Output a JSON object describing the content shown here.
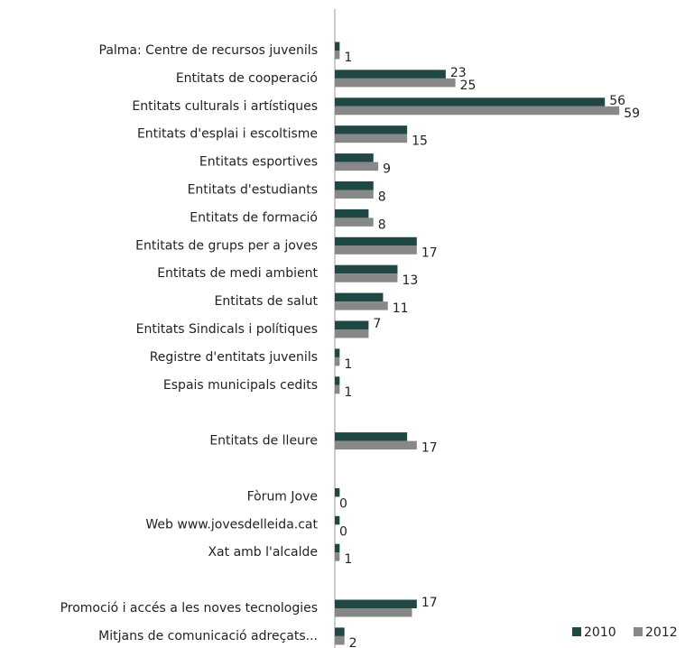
{
  "chart_data": {
    "type": "hbar",
    "categories": [
      "Palma: Centre de recursos juvenils",
      "Entitats de cooperació",
      "Entitats culturals i artístiques",
      "Entitats d'esplai i escoltisme",
      "Entitats esportives",
      "Entitats d'estudiants",
      "Entitats de formació",
      "Entitats de grups per a joves",
      "Entitats de medi ambient",
      "Entitats de salut",
      "Entitats Sindicals i polítiques",
      "Registre d'entitats juvenils",
      "Espais municipals cedits",
      null,
      "Entitats de lleure",
      null,
      "Fòrum Jove",
      "Web www.jovesdelleida.cat",
      "Xat amb l'alcalde",
      null,
      "Promoció i accés a les noves tecnologies",
      "Mitjans de comunicació adreçats..."
    ],
    "series": [
      {
        "name": "2010",
        "color": "#1f4744",
        "values": [
          1,
          23,
          56,
          15,
          8,
          8,
          7,
          17,
          13,
          10,
          7,
          1,
          1,
          null,
          15,
          null,
          1,
          1,
          1,
          null,
          17,
          2
        ],
        "value_labels": [
          null,
          "23",
          "56",
          null,
          null,
          null,
          null,
          null,
          null,
          null,
          "7",
          null,
          null,
          null,
          null,
          null,
          null,
          null,
          null,
          null,
          "17",
          null
        ]
      },
      {
        "name": "2012",
        "color": "#888888",
        "values": [
          1,
          25,
          59,
          15,
          9,
          8,
          8,
          17,
          13,
          11,
          7,
          1,
          1,
          null,
          17,
          null,
          0,
          0,
          1,
          null,
          16,
          2
        ],
        "value_labels": [
          "1",
          "25",
          "59",
          "15",
          "9",
          "8",
          "8",
          "17",
          "13",
          "11",
          null,
          "1",
          "1",
          null,
          "17",
          null,
          "0",
          "0",
          "1",
          null,
          null,
          "2"
        ]
      }
    ],
    "xlim": [
      0,
      70
    ],
    "legend": "bottom-right"
  }
}
